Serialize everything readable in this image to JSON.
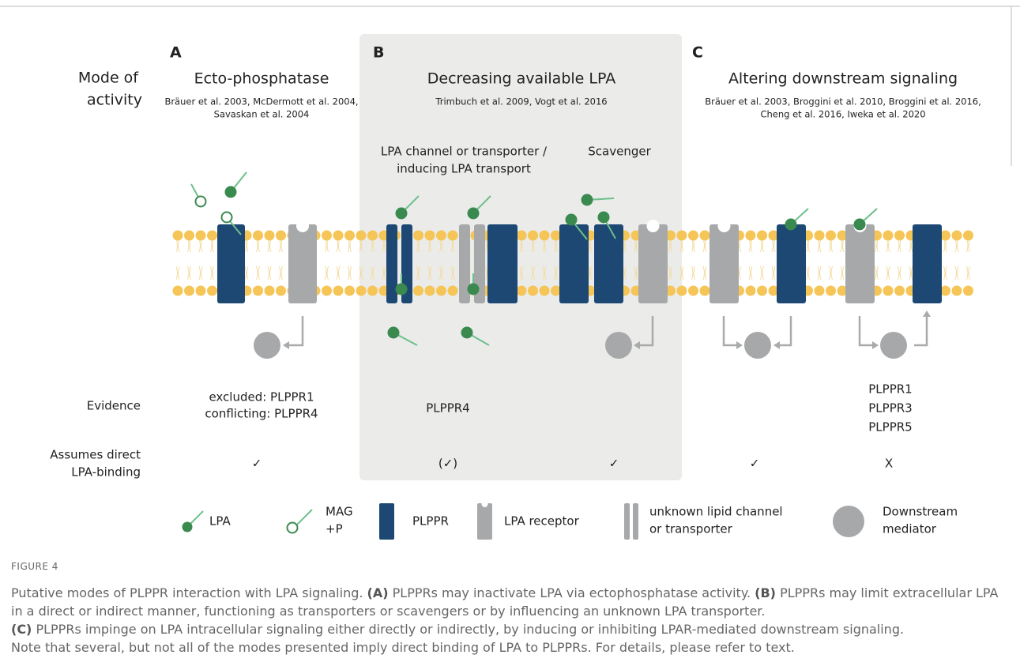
{
  "panels": [
    {
      "letter": "A",
      "title": "Ecto-phosphatase",
      "refs": [
        "Bräuer et al. 2003, McDermott et al. 2004,",
        "Savaskan et al. 2004"
      ],
      "evidence": [
        "excluded: PLPPR1",
        "conflicting: PLPPR4"
      ]
    },
    {
      "letter": "B",
      "title": "Decreasing available LPA",
      "refs": [
        "Trimbuch et al. 2009, Vogt et al. 2016"
      ],
      "evidence": [
        "PLPPR4"
      ],
      "sublabels": [
        [
          "LPA channel or transporter /",
          "inducing LPA transport"
        ],
        [
          "Scavenger"
        ]
      ]
    },
    {
      "letter": "C",
      "title": "Altering downstream signaling",
      "refs": [
        "Bräuer et al. 2003, Broggini et al. 2010, Broggini et al. 2016,",
        "Cheng et al. 2016, Iweka et al. 2020"
      ],
      "evidence": [
        "PLPPR1",
        "PLPPR3",
        "PLPPR5"
      ]
    }
  ],
  "row_labels": {
    "mode": [
      "Mode of",
      "activity"
    ],
    "evidence": "Evidence",
    "assumes": [
      "Assumes direct",
      "LPA-binding"
    ]
  },
  "checks": [
    "✓",
    "(✓)",
    "✓",
    "✓",
    "X"
  ],
  "legend": [
    [
      "LPA"
    ],
    [
      "MAG",
      "+P"
    ],
    [
      "PLPPR"
    ],
    [
      "LPA receptor"
    ],
    [
      "unknown lipid channel",
      "or transporter"
    ],
    [
      "Downstream",
      "mediator"
    ]
  ],
  "caption": {
    "label": "FIGURE 4",
    "lines": [
      [
        {
          "text": "Putative modes of PLPPR interaction with LPA signaling. "
        },
        {
          "text": "(A)",
          "bold": true
        },
        {
          "text": " PLPPRs may inactivate LPA via ectophosphatase activity. "
        },
        {
          "text": "(B)",
          "bold": true
        },
        {
          "text": " PLPPRs may limit extracellular LPA in a direct or indirect manner, functioning as transporters or scavengers or by influencing an unknown LPA transporter."
        }
      ],
      [
        {
          "text": "(C)",
          "bold": true
        },
        {
          "text": " PLPPRs impinge on LPA intracellular signaling either directly or indirectly, by inducing or inhibiting LPAR-mediated downstream signaling."
        }
      ],
      [
        {
          "text": "Note that several, but not all of the modes presented imply direct binding of LPA to PLPPRs. For details, please refer to text."
        }
      ]
    ]
  }
}
